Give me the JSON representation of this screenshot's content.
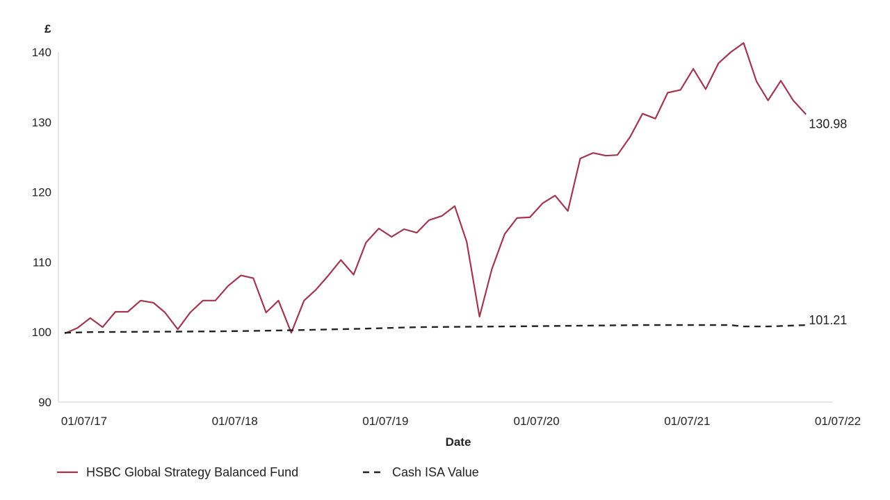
{
  "chart_data": {
    "type": "line",
    "title": "",
    "unit_label": "£",
    "xlabel": "Date",
    "ylabel": "",
    "ylim": [
      90,
      140
    ],
    "xlim": [
      "2017-07-01",
      "2022-07-01"
    ],
    "y_ticks": [
      "90",
      "100",
      "110",
      "120",
      "130",
      "140"
    ],
    "x_ticks": [
      {
        "label": "01/07/17",
        "date": "2017-07-01"
      },
      {
        "label": "01/07/18",
        "date": "2018-07-01"
      },
      {
        "label": "01/07/19",
        "date": "2019-07-01"
      },
      {
        "label": "01/07/20",
        "date": "2020-07-01"
      },
      {
        "label": "01/07/21",
        "date": "2021-07-01"
      },
      {
        "label": "01/07/22",
        "date": "2022-07-01"
      }
    ],
    "grid": false,
    "legend_position": "bottom-left",
    "series": [
      {
        "name": "HSBC Global Strategy Balanced Fund",
        "color": "#a0364f",
        "style": "solid",
        "end_label": "130.98",
        "points": [
          [
            "2017-07-01",
            99.8
          ],
          [
            "2017-08-01",
            100.6
          ],
          [
            "2017-09-01",
            102.0
          ],
          [
            "2017-10-01",
            100.7
          ],
          [
            "2017-11-01",
            102.9
          ],
          [
            "2017-12-01",
            102.9
          ],
          [
            "2018-01-01",
            104.5
          ],
          [
            "2018-02-01",
            104.2
          ],
          [
            "2018-03-01",
            102.8
          ],
          [
            "2018-04-01",
            100.4
          ],
          [
            "2018-05-01",
            102.8
          ],
          [
            "2018-06-01",
            104.5
          ],
          [
            "2018-07-01",
            104.5
          ],
          [
            "2018-08-01",
            106.6
          ],
          [
            "2018-09-01",
            108.1
          ],
          [
            "2018-10-01",
            107.7
          ],
          [
            "2018-11-01",
            102.8
          ],
          [
            "2018-12-01",
            104.5
          ],
          [
            "2019-01-01",
            99.9
          ],
          [
            "2019-02-01",
            104.5
          ],
          [
            "2019-03-01",
            106.0
          ],
          [
            "2019-04-01",
            108.1
          ],
          [
            "2019-05-01",
            110.3
          ],
          [
            "2019-06-01",
            108.2
          ],
          [
            "2019-07-01",
            112.8
          ],
          [
            "2019-08-01",
            114.8
          ],
          [
            "2019-09-01",
            113.6
          ],
          [
            "2019-10-01",
            114.7
          ],
          [
            "2019-11-01",
            114.2
          ],
          [
            "2019-12-01",
            116.0
          ],
          [
            "2020-01-01",
            116.6
          ],
          [
            "2020-02-01",
            118.0
          ],
          [
            "2020-03-01",
            112.9
          ],
          [
            "2020-04-01",
            102.2
          ],
          [
            "2020-05-01",
            109.0
          ],
          [
            "2020-06-01",
            114.0
          ],
          [
            "2020-07-01",
            116.3
          ],
          [
            "2020-08-01",
            116.4
          ],
          [
            "2020-09-01",
            118.4
          ],
          [
            "2020-10-01",
            119.5
          ],
          [
            "2020-11-01",
            117.3
          ],
          [
            "2020-12-01",
            124.8
          ],
          [
            "2021-01-01",
            125.6
          ],
          [
            "2021-02-01",
            125.2
          ],
          [
            "2021-03-01",
            125.3
          ],
          [
            "2021-04-01",
            127.9
          ],
          [
            "2021-05-01",
            131.2
          ],
          [
            "2021-06-01",
            130.5
          ],
          [
            "2021-07-01",
            134.2
          ],
          [
            "2021-08-01",
            134.6
          ],
          [
            "2021-09-01",
            137.6
          ],
          [
            "2021-10-01",
            134.7
          ],
          [
            "2021-11-01",
            138.4
          ],
          [
            "2021-12-01",
            140.0
          ],
          [
            "2022-01-01",
            141.3
          ],
          [
            "2022-02-01",
            135.8
          ],
          [
            "2022-03-01",
            133.1
          ],
          [
            "2022-04-01",
            135.9
          ],
          [
            "2022-05-01",
            133.1
          ],
          [
            "2022-06-01",
            131.1
          ]
        ]
      },
      {
        "name": "Cash ISA Value",
        "color": "#222222",
        "style": "dashed",
        "end_label": "101.21",
        "points": [
          [
            "2017-07-01",
            99.9
          ],
          [
            "2017-09-01",
            100.0
          ],
          [
            "2018-07-01",
            100.1
          ],
          [
            "2018-11-01",
            100.2
          ],
          [
            "2019-02-01",
            100.3
          ],
          [
            "2019-07-01",
            100.5
          ],
          [
            "2019-11-01",
            100.7
          ],
          [
            "2020-06-01",
            100.8
          ],
          [
            "2021-05-01",
            101.0
          ],
          [
            "2021-12-01",
            101.0
          ],
          [
            "2022-01-01",
            100.8
          ],
          [
            "2022-03-01",
            100.8
          ],
          [
            "2022-06-01",
            101.0
          ]
        ]
      }
    ]
  }
}
